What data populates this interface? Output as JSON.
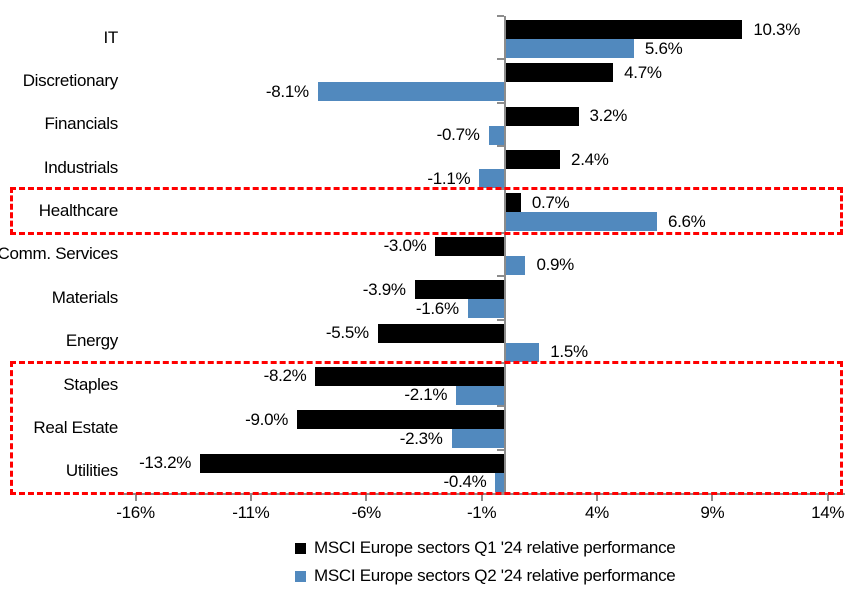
{
  "chart_data": {
    "type": "bar",
    "orientation": "horizontal",
    "title": "",
    "categories": [
      "IT",
      "Discretionary",
      "Financials",
      "Industrials",
      "Healthcare",
      "Comm. Services",
      "Materials",
      "Energy",
      "Staples",
      "Real Estate",
      "Utilities"
    ],
    "series": [
      {
        "name": "MSCI Europe sectors Q1 '24 relative performance",
        "color": "#000000",
        "values": [
          10.3,
          4.7,
          3.2,
          2.4,
          0.7,
          -3.0,
          -3.9,
          -5.5,
          -8.2,
          -9.0,
          -13.2
        ],
        "labels": [
          "10.3%",
          "4.7%",
          "3.2%",
          "2.4%",
          "0.7%",
          "-3.0%",
          "-3.9%",
          "-5.5%",
          "-8.2%",
          "-9.0%",
          "-13.2%"
        ]
      },
      {
        "name": "MSCI Europe sectors Q2 '24 relative performance",
        "color": "#5189BE",
        "values": [
          5.6,
          -8.1,
          -0.7,
          -1.1,
          6.6,
          0.9,
          -1.6,
          1.5,
          -2.1,
          -2.3,
          -0.4
        ],
        "labels": [
          "5.6%",
          "-8.1%",
          "-0.7%",
          "-1.1%",
          "6.6%",
          "0.9%",
          "-1.6%",
          "1.5%",
          "-2.1%",
          "-2.3%",
          "-0.4%"
        ]
      }
    ],
    "x_axis": {
      "tick_values": [
        -16,
        -11,
        -6,
        -1,
        4,
        9,
        14
      ],
      "tick_labels": [
        "-16%",
        "-11%",
        "-6%",
        "-1%",
        "4%",
        "9%",
        "14%"
      ],
      "min": -16.5,
      "max": 14.75,
      "grid": false
    },
    "legend_position": "bottom",
    "highlights": [
      {
        "name": "healthcare-highlight",
        "start_row": 4,
        "end_row": 4,
        "color": "#FF0000"
      },
      {
        "name": "defensives-highlight",
        "start_row": 8,
        "end_row": 10,
        "color": "#FF0000"
      }
    ]
  },
  "colors": {
    "axis": "#8C8C8C",
    "q1_bar": "#000000",
    "q2_bar": "#5189BE",
    "highlight": "#FF0000",
    "text": "#000000"
  }
}
